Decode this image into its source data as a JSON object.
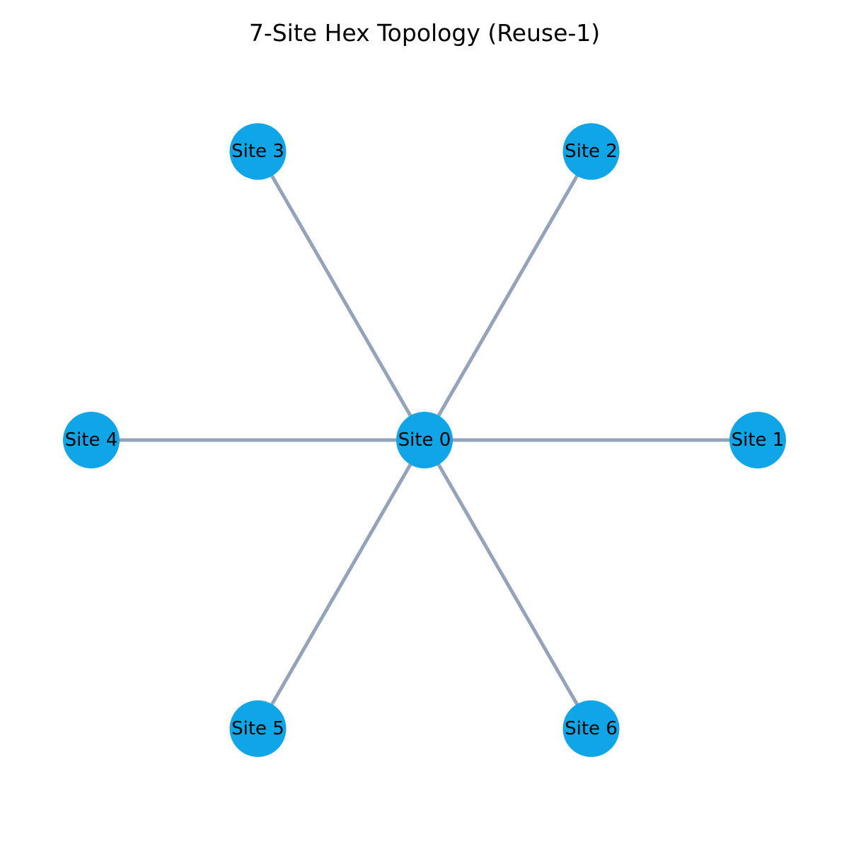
{
  "title": "7-Site Hex Topology (Reuse-1)",
  "colors": {
    "node_fill": "#10a5e7",
    "edge_stroke": "#94a3ba",
    "label_text": "#000000"
  },
  "nodes": [
    {
      "id": "site-0",
      "label": "Site 0"
    },
    {
      "id": "site-1",
      "label": "Site 1"
    },
    {
      "id": "site-2",
      "label": "Site 2"
    },
    {
      "id": "site-3",
      "label": "Site 3"
    },
    {
      "id": "site-4",
      "label": "Site 4"
    },
    {
      "id": "site-5",
      "label": "Site 5"
    },
    {
      "id": "site-6",
      "label": "Site 6"
    }
  ],
  "edges": [
    {
      "from": "site-0",
      "to": "site-1"
    },
    {
      "from": "site-0",
      "to": "site-2"
    },
    {
      "from": "site-0",
      "to": "site-3"
    },
    {
      "from": "site-0",
      "to": "site-4"
    },
    {
      "from": "site-0",
      "to": "site-5"
    },
    {
      "from": "site-0",
      "to": "site-6"
    }
  ]
}
